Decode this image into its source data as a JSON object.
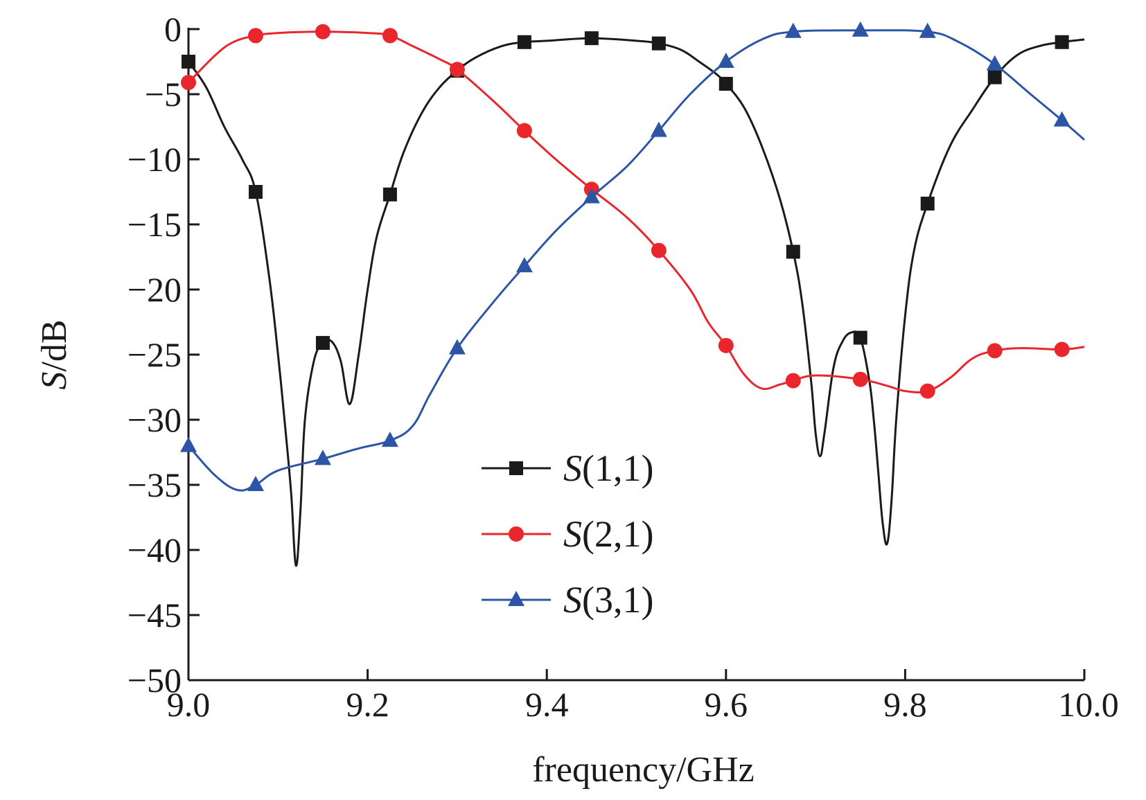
{
  "chart_data": {
    "type": "line",
    "xlabel": "frequency/GHz",
    "ylabel_italic": "S",
    "ylabel_rest": "/dB",
    "xlim": [
      9.0,
      10.0
    ],
    "ylim": [
      -50,
      0
    ],
    "xticks": [
      "9.0",
      "9.2",
      "9.4",
      "9.6",
      "9.8",
      "10.0"
    ],
    "xtick_values": [
      9.0,
      9.2,
      9.4,
      9.6,
      9.8,
      10.0
    ],
    "yticks": [
      "0",
      "−5",
      "−10",
      "−15",
      "−20",
      "−25",
      "−30",
      "−35",
      "−40",
      "−45",
      "−50"
    ],
    "ytick_values": [
      0,
      -5,
      -10,
      -15,
      -20,
      -25,
      -30,
      -35,
      -40,
      -45,
      -50
    ],
    "grid": false,
    "legend_position": "bottom-center",
    "series": [
      {
        "name_italic": "S",
        "name_rest": "(1,1)",
        "color": "#1a1a1a",
        "marker": "square",
        "x": [
          9.0,
          9.02,
          9.04,
          9.06,
          9.075,
          9.09,
          9.1,
          9.11,
          9.115,
          9.12,
          9.125,
          9.13,
          9.14,
          9.15,
          9.16,
          9.17,
          9.18,
          9.19,
          9.2,
          9.21,
          9.225,
          9.24,
          9.26,
          9.28,
          9.3,
          9.32,
          9.35,
          9.375,
          9.4,
          9.45,
          9.5,
          9.525,
          9.55,
          9.57,
          9.59,
          9.6,
          9.62,
          9.64,
          9.66,
          9.675,
          9.685,
          9.695,
          9.7,
          9.705,
          9.71,
          9.72,
          9.73,
          9.74,
          9.75,
          9.76,
          9.765,
          9.77,
          9.775,
          9.78,
          9.785,
          9.79,
          9.8,
          9.81,
          9.825,
          9.85,
          9.875,
          9.9,
          9.925,
          9.95,
          9.975,
          10.0
        ],
        "y": [
          -2.5,
          -4.5,
          -7.5,
          -10.0,
          -12.5,
          -19.0,
          -25.0,
          -32.0,
          -36.0,
          -41.2,
          -37.0,
          -30.0,
          -25.5,
          -24.1,
          -24.0,
          -25.5,
          -28.8,
          -25.0,
          -20.0,
          -16.0,
          -12.7,
          -9.5,
          -6.5,
          -4.5,
          -3.2,
          -2.2,
          -1.3,
          -1.0,
          -0.9,
          -0.7,
          -0.9,
          -1.1,
          -1.6,
          -2.5,
          -3.5,
          -4.2,
          -6.0,
          -9.0,
          -13.0,
          -17.1,
          -21.0,
          -27.0,
          -31.0,
          -32.8,
          -31.0,
          -26.0,
          -24.0,
          -23.3,
          -23.7,
          -27.0,
          -30.0,
          -34.0,
          -38.0,
          -39.5,
          -36.0,
          -30.0,
          -22.0,
          -17.0,
          -13.4,
          -9.0,
          -6.2,
          -3.7,
          -2.0,
          -1.3,
          -1.0,
          -0.8
        ],
        "marker_x": [
          9.0,
          9.075,
          9.15,
          9.225,
          9.3,
          9.375,
          9.45,
          9.525,
          9.6,
          9.675,
          9.75,
          9.825,
          9.9,
          9.975
        ],
        "marker_y": [
          -2.5,
          -12.5,
          -24.1,
          -12.7,
          -3.2,
          -1.0,
          -0.7,
          -1.1,
          -4.2,
          -17.1,
          -23.7,
          -13.4,
          -3.7,
          -1.0
        ]
      },
      {
        "name_italic": "S",
        "name_rest": "(2,1)",
        "color": "#e8262b",
        "marker": "circle",
        "x": [
          9.0,
          9.03,
          9.05,
          9.075,
          9.1,
          9.15,
          9.2,
          9.225,
          9.25,
          9.28,
          9.3,
          9.34,
          9.375,
          9.41,
          9.45,
          9.49,
          9.525,
          9.56,
          9.58,
          9.6,
          9.62,
          9.64,
          9.66,
          9.675,
          9.7,
          9.75,
          9.78,
          9.8,
          9.825,
          9.85,
          9.875,
          9.9,
          9.93,
          9.975,
          10.0
        ],
        "y": [
          -4.1,
          -2.0,
          -1.0,
          -0.5,
          -0.3,
          -0.2,
          -0.3,
          -0.5,
          -1.3,
          -2.3,
          -3.1,
          -5.5,
          -7.8,
          -10.0,
          -12.3,
          -14.5,
          -17.0,
          -20.0,
          -22.5,
          -24.3,
          -26.5,
          -27.6,
          -27.3,
          -27.0,
          -26.6,
          -26.9,
          -27.4,
          -27.8,
          -27.8,
          -26.8,
          -25.3,
          -24.7,
          -24.5,
          -24.6,
          -24.4
        ],
        "marker_x": [
          9.0,
          9.075,
          9.15,
          9.225,
          9.3,
          9.375,
          9.45,
          9.525,
          9.6,
          9.675,
          9.75,
          9.825,
          9.9,
          9.975
        ],
        "marker_y": [
          -4.1,
          -0.5,
          -0.2,
          -0.5,
          -3.1,
          -7.8,
          -12.3,
          -17.0,
          -24.3,
          -27.0,
          -26.9,
          -27.8,
          -24.7,
          -24.6
        ]
      },
      {
        "name_italic": "S",
        "name_rest": "(3,1)",
        "color": "#2c55a6",
        "marker": "triangle",
        "x": [
          9.0,
          9.03,
          9.055,
          9.075,
          9.1,
          9.15,
          9.19,
          9.225,
          9.25,
          9.27,
          9.3,
          9.34,
          9.375,
          9.41,
          9.45,
          9.49,
          9.525,
          9.56,
          9.6,
          9.64,
          9.675,
          9.75,
          9.825,
          9.86,
          9.9,
          9.94,
          9.975,
          10.0
        ],
        "y": [
          -32.0,
          -34.3,
          -35.4,
          -35.0,
          -33.9,
          -33.0,
          -32.2,
          -31.6,
          -30.5,
          -28.0,
          -24.5,
          -21.0,
          -18.2,
          -15.5,
          -12.9,
          -10.5,
          -7.8,
          -5.0,
          -2.5,
          -0.8,
          -0.2,
          -0.1,
          -0.2,
          -1.0,
          -2.7,
          -5.0,
          -7.0,
          -8.5
        ],
        "marker_x": [
          9.0,
          9.075,
          9.15,
          9.225,
          9.3,
          9.375,
          9.45,
          9.525,
          9.6,
          9.675,
          9.75,
          9.825,
          9.9,
          9.975
        ],
        "marker_y": [
          -32.0,
          -35.0,
          -33.0,
          -31.6,
          -24.5,
          -18.2,
          -12.9,
          -7.8,
          -2.5,
          -0.2,
          -0.1,
          -0.2,
          -2.7,
          -7.0
        ]
      }
    ]
  }
}
